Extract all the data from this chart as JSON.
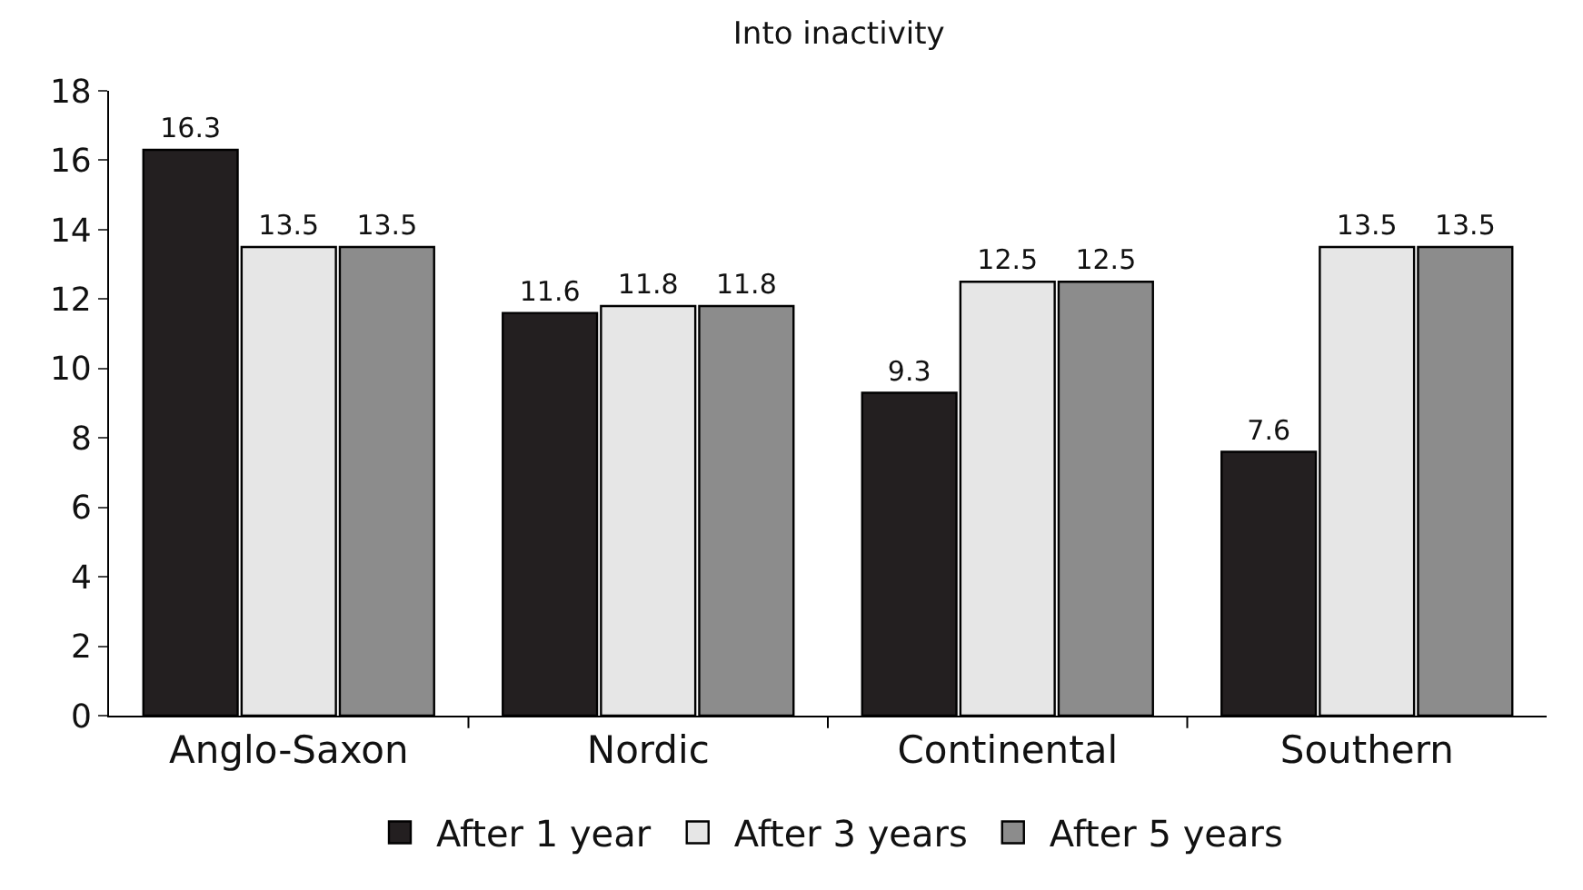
{
  "chart_data": {
    "type": "bar",
    "title": "Into inactivity",
    "categories": [
      "Anglo-Saxon",
      "Nordic",
      "Continental",
      "Southern"
    ],
    "series": [
      {
        "name": "After 1 year",
        "color": "#231f20",
        "values": [
          16.3,
          11.6,
          9.3,
          7.6
        ]
      },
      {
        "name": "After 3 years",
        "color": "#e6e6e6",
        "values": [
          13.5,
          11.8,
          12.5,
          13.5
        ]
      },
      {
        "name": "After 5 years",
        "color": "#8c8c8c",
        "values": [
          13.5,
          11.8,
          12.5,
          13.5
        ]
      }
    ],
    "ylim": [
      0,
      18
    ],
    "yticks": [
      0,
      2,
      4,
      6,
      8,
      10,
      12,
      14,
      16,
      18
    ],
    "grid": false,
    "legend": "bottom",
    "data_labels": true
  }
}
